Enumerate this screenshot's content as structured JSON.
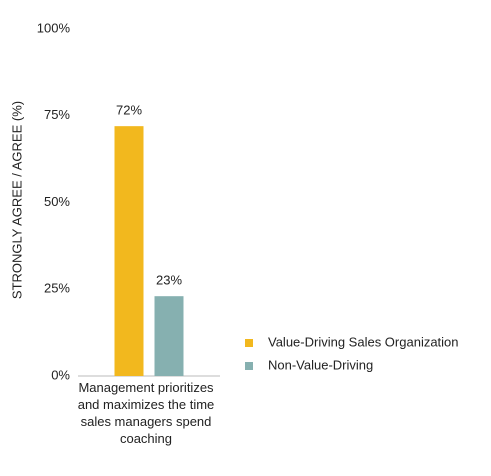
{
  "chart_data": {
    "type": "bar",
    "y_label": "STRONGLY AGREE / AGREE (%)",
    "categories": [
      "Management prioritizes and maximizes the time sales managers spend coaching"
    ],
    "series": [
      {
        "name": "Value-Driving Sales Organization",
        "color": "#f2b81e",
        "values": [
          72
        ],
        "value_labels": [
          "72%"
        ]
      },
      {
        "name": "Non-Value-Driving",
        "color": "#86b0b0",
        "values": [
          23
        ],
        "value_labels": [
          "23%"
        ]
      }
    ],
    "ylim": [
      0,
      100
    ],
    "yticks": [
      {
        "value": 0,
        "label": "0%"
      },
      {
        "value": 25,
        "label": "25%"
      },
      {
        "value": 50,
        "label": "50%"
      },
      {
        "value": 75,
        "label": "75%"
      },
      {
        "value": 100,
        "label": "100%"
      }
    ],
    "grid": false,
    "legend": "right"
  }
}
